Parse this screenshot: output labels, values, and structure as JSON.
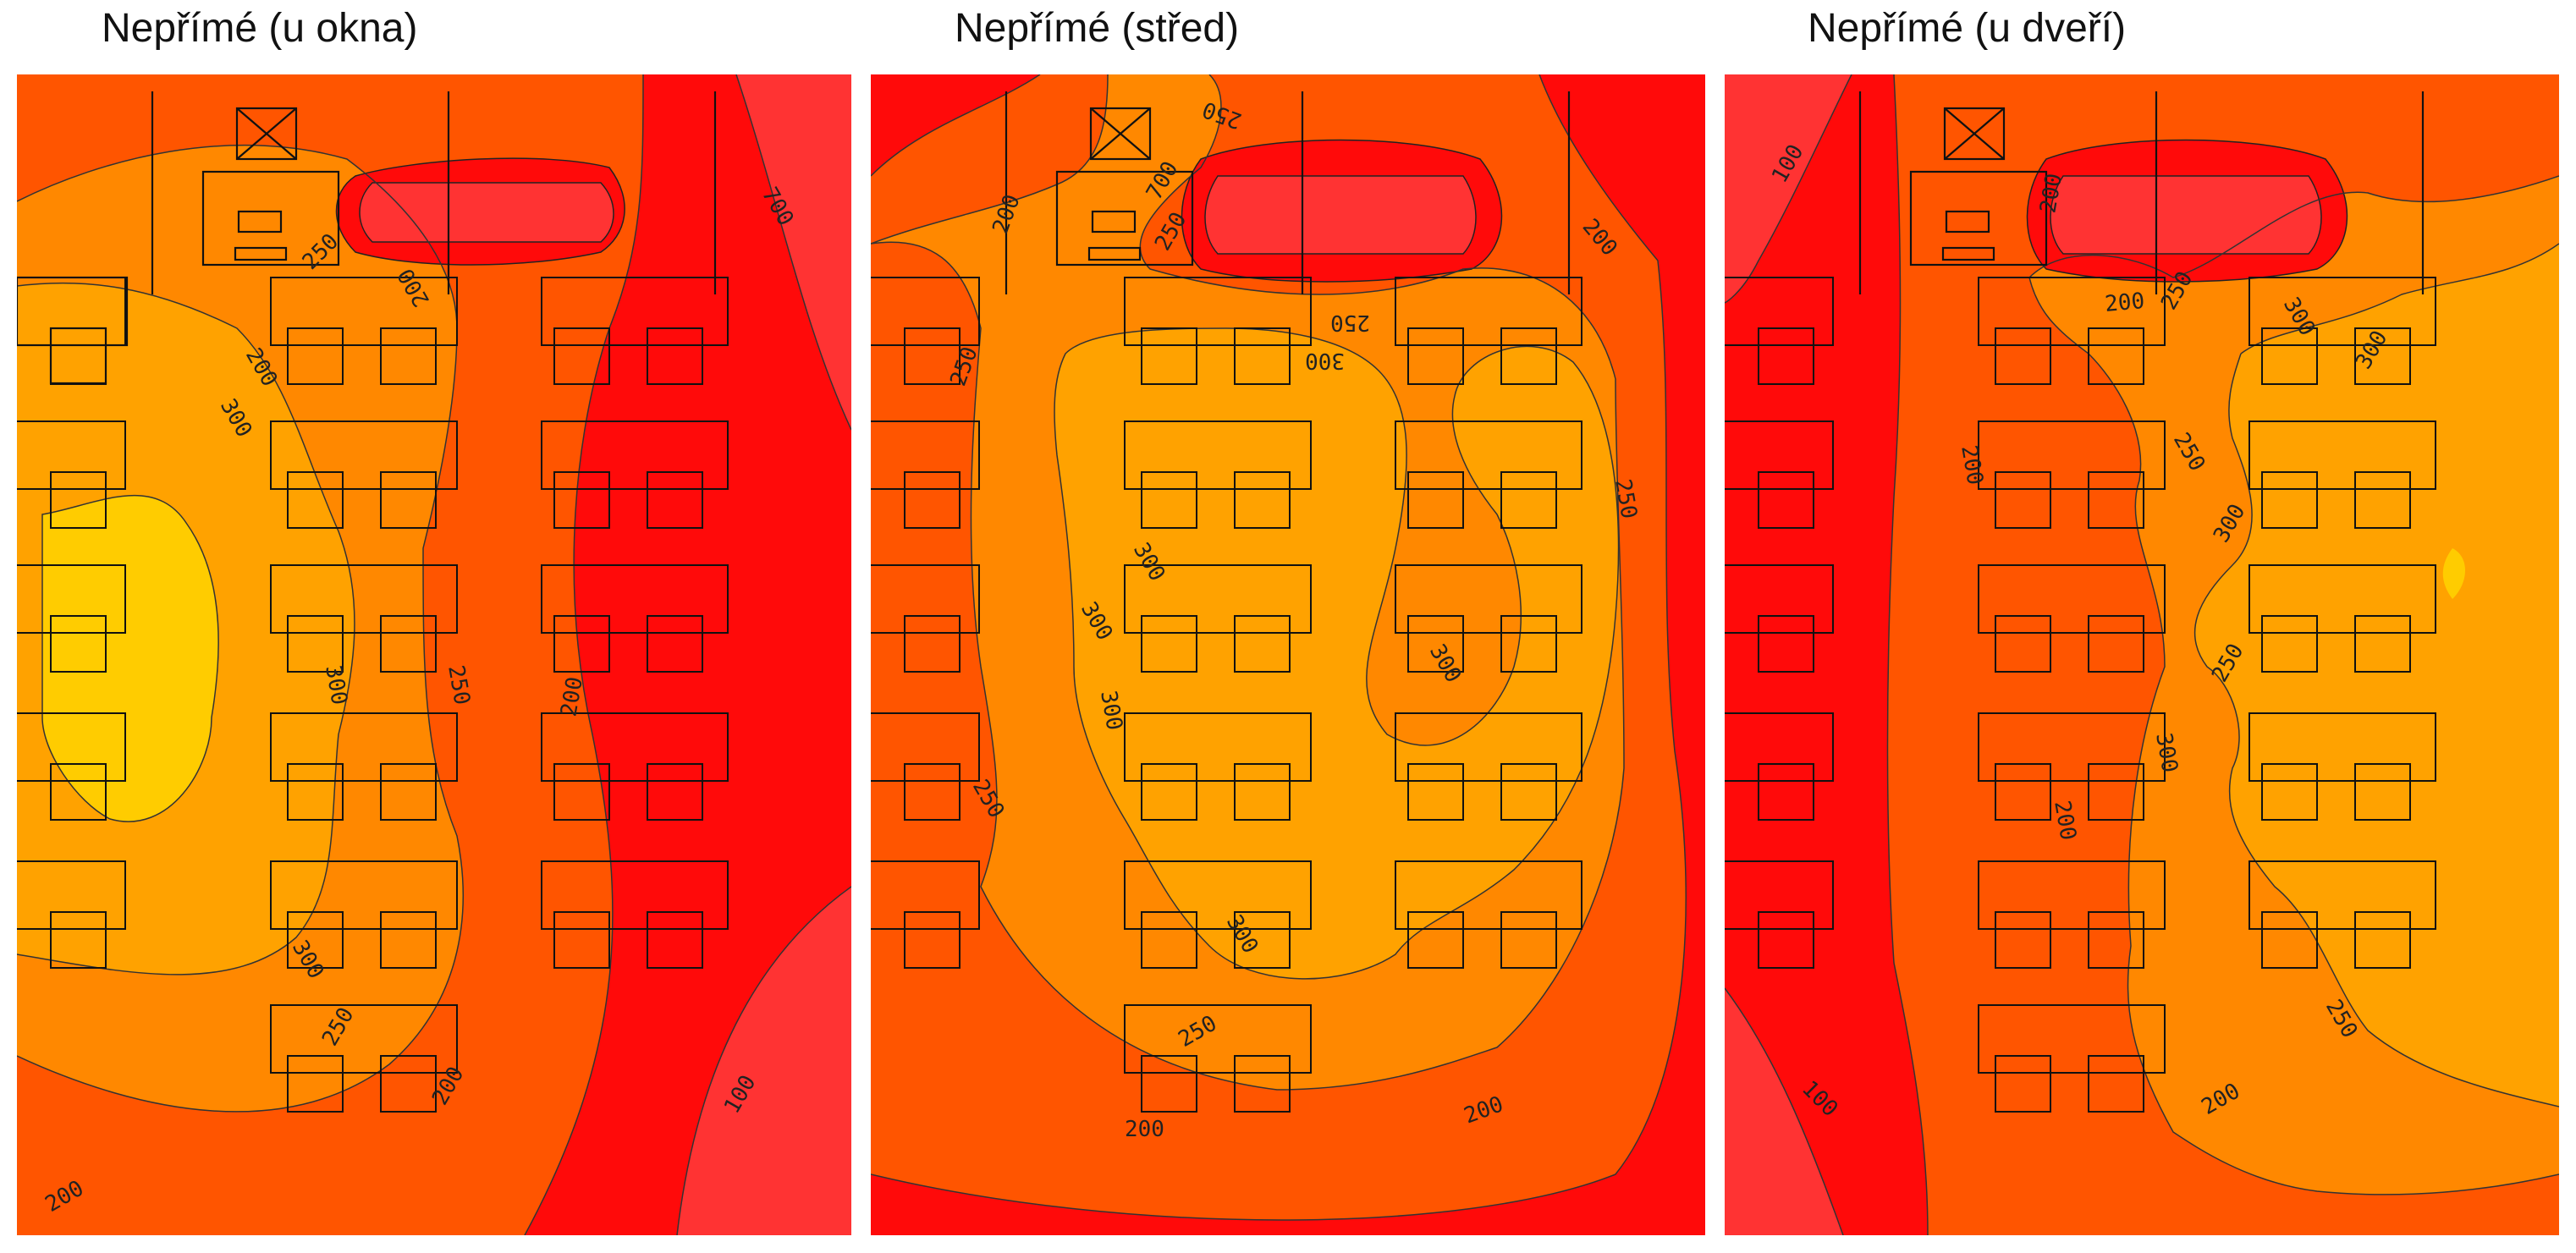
{
  "panels": [
    {
      "title": "Nepřímé (u okna)",
      "variant": "window"
    },
    {
      "title": "Nepřímé (střed)",
      "variant": "center"
    },
    {
      "title": "Nepřímé (u dveří)",
      "variant": "door"
    }
  ],
  "legend_colors": {
    "below_100": "#ff3333",
    "100_200": "#ff0a0a",
    "200_250": "#ff5500",
    "250_300": "#ff8800",
    "300_350": "#ffa200",
    "above_350": "#ffcc00"
  },
  "contour_labels": {
    "window": [
      "700",
      "250",
      "200",
      "200",
      "300",
      "250",
      "300",
      "200",
      "300",
      "250",
      "200",
      "100",
      "200"
    ],
    "center": [
      "250",
      "200",
      "700",
      "250",
      "200",
      "300",
      "250",
      "250",
      "300",
      "300",
      "300",
      "300",
      "250",
      "300",
      "250",
      "250",
      "200",
      "200"
    ],
    "door": [
      "100",
      "200",
      "250",
      "200",
      "300",
      "300",
      "250",
      "200",
      "300",
      "250",
      "300",
      "200",
      "250",
      "100",
      "200"
    ]
  }
}
